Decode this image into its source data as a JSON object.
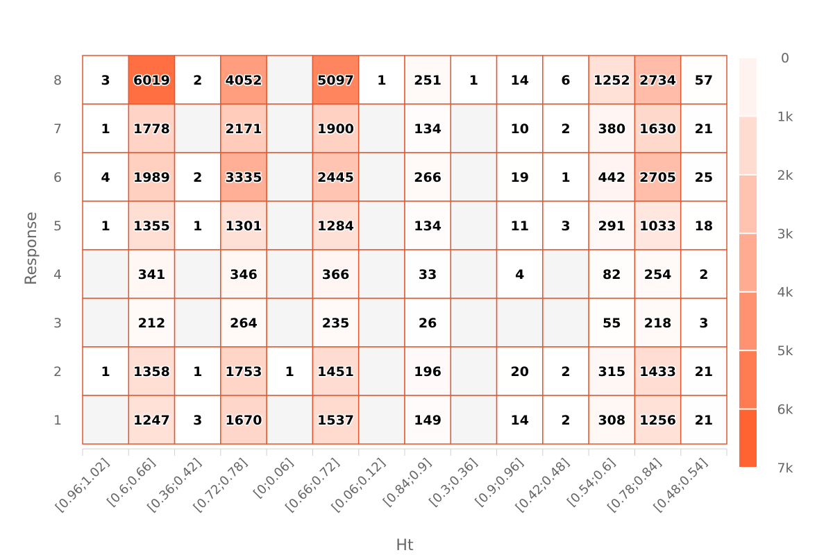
{
  "chart_data": {
    "type": "heatmap",
    "xlabel": "Ht",
    "ylabel": "Response",
    "x_categories": [
      "[0.96;1.02]",
      "[0.6;0.66]",
      "[0.36;0.42]",
      "[0.72;0.78]",
      "[0;0.06]",
      "[0.66;0.72]",
      "[0.06;0.12]",
      "[0.84;0.9]",
      "[0.3;0.36]",
      "[0.9;0.96]",
      "[0.42;0.48]",
      "[0.54;0.6]",
      "[0.78;0.84]",
      "[0.48;0.54]"
    ],
    "y_categories": [
      "8",
      "7",
      "6",
      "5",
      "4",
      "3",
      "2",
      "1"
    ],
    "values": [
      [
        3,
        6019,
        2,
        4052,
        null,
        5097,
        1,
        251,
        1,
        14,
        6,
        1252,
        2734,
        57
      ],
      [
        1,
        1778,
        null,
        2171,
        null,
        1900,
        null,
        134,
        null,
        10,
        2,
        380,
        1630,
        21
      ],
      [
        4,
        1989,
        2,
        3335,
        null,
        2445,
        null,
        266,
        null,
        19,
        1,
        442,
        2705,
        25
      ],
      [
        1,
        1355,
        1,
        1301,
        null,
        1284,
        null,
        134,
        null,
        11,
        3,
        291,
        1033,
        18
      ],
      [
        null,
        341,
        null,
        346,
        null,
        366,
        null,
        33,
        null,
        4,
        null,
        82,
        254,
        2
      ],
      [
        null,
        212,
        null,
        264,
        null,
        235,
        null,
        26,
        null,
        null,
        null,
        55,
        218,
        3
      ],
      [
        1,
        1358,
        1,
        1753,
        1,
        1451,
        null,
        196,
        null,
        20,
        2,
        315,
        1433,
        21
      ],
      [
        null,
        1247,
        3,
        1670,
        null,
        1537,
        null,
        149,
        null,
        14,
        2,
        308,
        1256,
        21
      ]
    ],
    "colorbar": {
      "min": 0,
      "max": 7000,
      "ticks": [
        "0",
        "1k",
        "2k",
        "3k",
        "4k",
        "5k",
        "6k",
        "7k"
      ],
      "color_low": "#ffffff",
      "color_high": "#ff5722",
      "steps": 7
    },
    "cell_border_color": "#e4572e",
    "missing_color": "#f5f5f5",
    "axis_color": "#d0d0d0",
    "text_color": "#666666"
  }
}
